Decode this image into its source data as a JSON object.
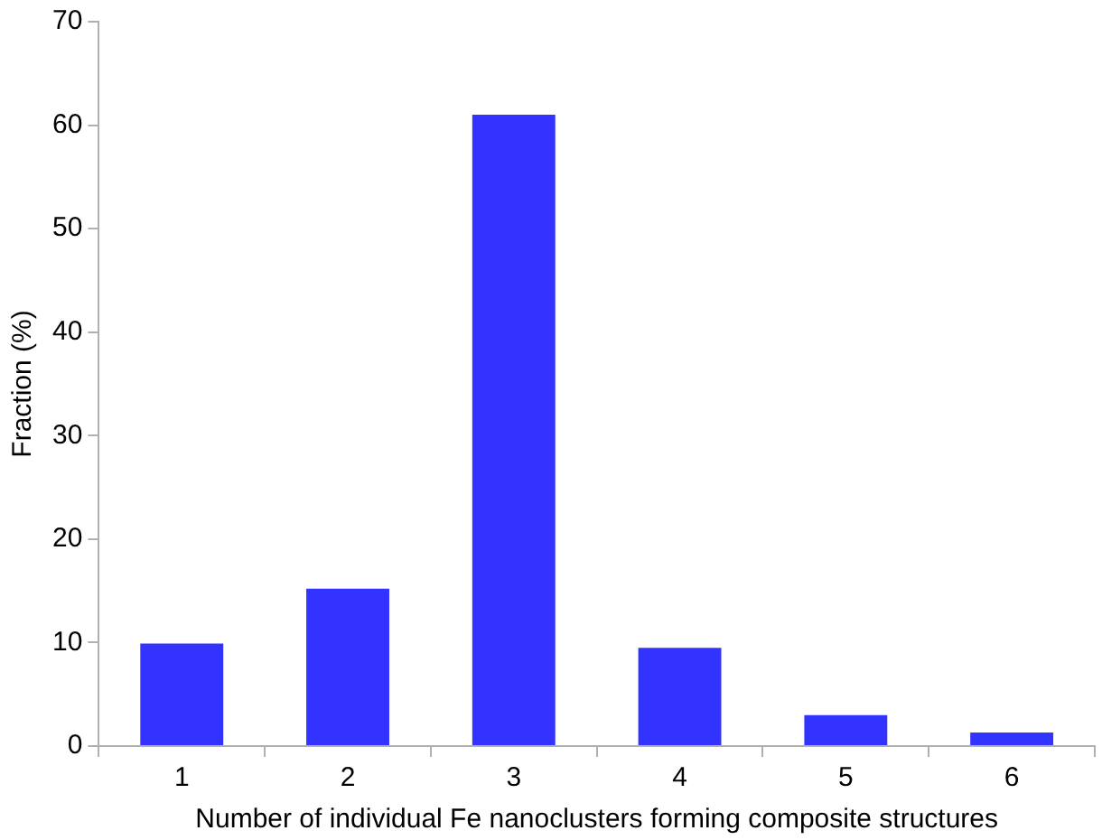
{
  "chart_data": {
    "type": "bar",
    "xlabel": "Number of individual Fe nanoclusters forming composite structures",
    "ylabel": "Fraction (%)",
    "categories": [
      "1",
      "2",
      "3",
      "4",
      "5",
      "6"
    ],
    "values": [
      9.9,
      15.2,
      61,
      9.5,
      3,
      1.3
    ],
    "color": "#3333ff",
    "ylim": [
      0,
      70
    ],
    "yticks": [
      0,
      10,
      20,
      30,
      40,
      50,
      60,
      70
    ],
    "grid": false,
    "legend": false
  }
}
